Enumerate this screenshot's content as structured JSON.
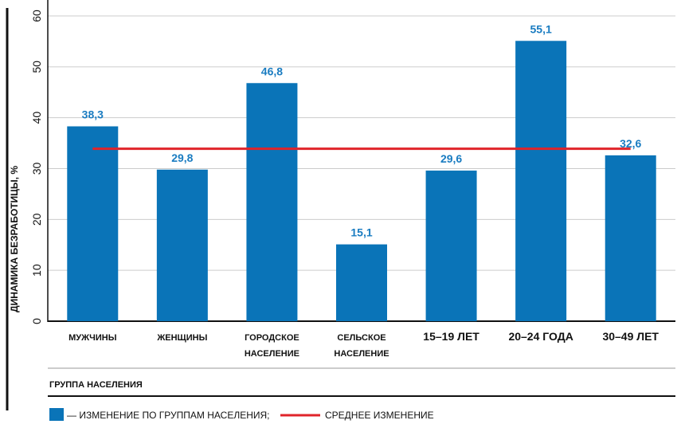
{
  "chart_data": {
    "type": "bar",
    "title": "",
    "xlabel": "ГРУППА НАСЕЛЕНИЯ",
    "ylabel": "ДИНАМИКА БЕЗРАБОТИЦЫ, %",
    "ylim": [
      0,
      60
    ],
    "yticks": [
      "0",
      "10",
      "20",
      "30",
      "40",
      "50",
      "60"
    ],
    "grid": "horizontal",
    "categories": [
      [
        "МУЖЧИНЫ"
      ],
      [
        "ЖЕНЩИНЫ"
      ],
      [
        "ГОРОДСКОЕ",
        "НАСЕЛЕНИЕ"
      ],
      [
        "СЕЛЬСКОЕ",
        "НАСЕЛЕНИЕ"
      ],
      [
        "15–19 ЛЕТ"
      ],
      [
        "20–24 ГОДА"
      ],
      [
        "30–49 ЛЕТ"
      ]
    ],
    "values": [
      38.3,
      29.8,
      46.8,
      15.1,
      29.6,
      55.1,
      32.6
    ],
    "value_labels": [
      "38,3",
      "29,8",
      "46,8",
      "15,1",
      "29,6",
      "55,1",
      "32,6"
    ],
    "average": 33.9,
    "colors": {
      "bar": "#0a74b8",
      "average_line": "#e0242a",
      "data_label": "#1a7cc1",
      "grid": "#cccccc"
    },
    "legend": {
      "placement": "bottom-left",
      "bar_text": "— ИЗМЕНЕНИЕ ПО ГРУППАМ НАСЕЛЕНИЯ;",
      "line_text": "СРЕДНЕЕ ИЗМЕНЕНИЕ"
    }
  }
}
